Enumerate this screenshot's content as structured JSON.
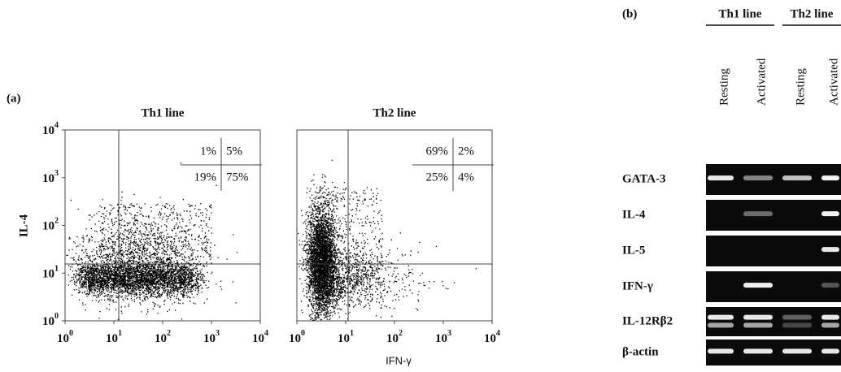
{
  "panel_a": {
    "label": "(a)",
    "y_axis_label": "IL-4",
    "x_axis_label": "IFN-γ",
    "tick_labels": [
      {
        "base": "10",
        "exp": "0"
      },
      {
        "base": "10",
        "exp": "1"
      },
      {
        "base": "10",
        "exp": "2"
      },
      {
        "base": "10",
        "exp": "3"
      },
      {
        "base": "10",
        "exp": "4"
      }
    ],
    "plots": [
      {
        "title": "Th1 line",
        "quadrants": [
          "1%",
          "5%",
          "19%",
          "75%"
        ]
      },
      {
        "title": "Th2 line",
        "quadrants": [
          "69%",
          "2%",
          "25%",
          "4%"
        ]
      }
    ]
  },
  "panel_b": {
    "label": "(b)",
    "groups": [
      "Th1 line",
      "Th2 line"
    ],
    "lanes": [
      "Resting",
      "Activated",
      "Resting",
      "Activated"
    ],
    "rows": [
      "GATA-3",
      "IL-4",
      "IL-5",
      "IFN-γ",
      "IL-12Rβ2",
      "β-actin"
    ]
  }
}
